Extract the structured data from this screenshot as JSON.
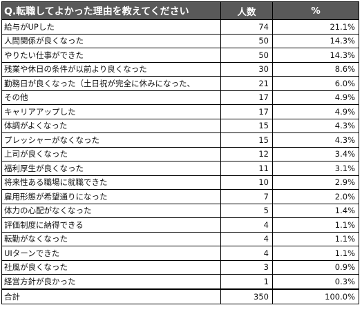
{
  "chart_data": {
    "type": "table",
    "title": "Q.転職してよかった理由を教えてください",
    "columns": [
      "人数",
      "%"
    ],
    "rows": [
      {
        "label": "給与がUPした",
        "count": "74",
        "percent": "21.1%"
      },
      {
        "label": "人間関係が良くなった",
        "count": "50",
        "percent": "14.3%"
      },
      {
        "label": "やりたい仕事ができた",
        "count": "50",
        "percent": "14.3%"
      },
      {
        "label": "残業や休日の条件が以前より良くなった",
        "count": "30",
        "percent": "8.6%"
      },
      {
        "label": "勤務日が良くなった（土日祝が完全に休みになった、",
        "count": "21",
        "percent": "6.0%"
      },
      {
        "label": "その他",
        "count": "17",
        "percent": "4.9%"
      },
      {
        "label": "キャリアアップした",
        "count": "17",
        "percent": "4.9%"
      },
      {
        "label": "体調がよくなった",
        "count": "15",
        "percent": "4.3%"
      },
      {
        "label": "プレッシャーがなくなった",
        "count": "15",
        "percent": "4.3%"
      },
      {
        "label": "上司が良くなった",
        "count": "12",
        "percent": "3.4%"
      },
      {
        "label": "福利厚生が良くなった",
        "count": "11",
        "percent": "3.1%"
      },
      {
        "label": "将来性ある職場に就職できた",
        "count": "10",
        "percent": "2.9%"
      },
      {
        "label": "雇用形態が希望通りになった",
        "count": "7",
        "percent": "2.0%"
      },
      {
        "label": "体力の心配がなくなった",
        "count": "5",
        "percent": "1.4%"
      },
      {
        "label": "評価制度に納得できる",
        "count": "4",
        "percent": "1.1%"
      },
      {
        "label": "転勤がなくなった",
        "count": "4",
        "percent": "1.1%"
      },
      {
        "label": "UIターンできた",
        "count": "4",
        "percent": "1.1%"
      },
      {
        "label": "社風が良くなった",
        "count": "3",
        "percent": "0.9%"
      },
      {
        "label": "経営方針が良かった",
        "count": "1",
        "percent": "0.3%"
      }
    ],
    "total": {
      "label": "合計",
      "count": "350",
      "percent": "100.0%"
    }
  },
  "colors": {
    "header_bg": "#595959",
    "header_text": "#ffffff",
    "border": "#000000"
  }
}
